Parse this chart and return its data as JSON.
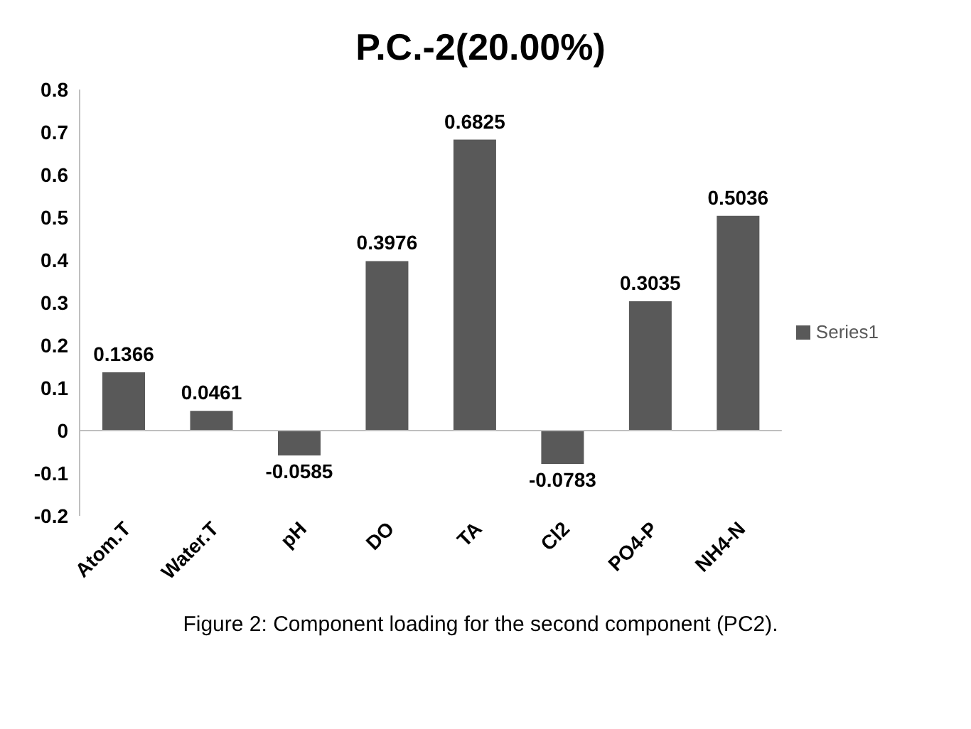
{
  "chart_data": {
    "type": "bar",
    "title": "P.C.-2(20.00%)",
    "categories": [
      "Atom.T",
      "Water.T",
      "pH",
      "DO",
      "TA",
      "Cl2",
      "PO4-P",
      "NH4-N"
    ],
    "series": [
      {
        "name": "Series1",
        "color": "#595959",
        "values": [
          0.1366,
          0.0461,
          -0.0585,
          0.3976,
          0.6825,
          -0.0783,
          0.3035,
          0.5036
        ]
      }
    ],
    "ylim": [
      -0.2,
      0.8
    ],
    "yticks": [
      -0.2,
      -0.1,
      0,
      0.1,
      0.2,
      0.3,
      0.4,
      0.5,
      0.6,
      0.7,
      0.8
    ],
    "data_labels": true,
    "legend": "right",
    "annotations": [
      "Figure 2: Component loading for the second component (PC2)."
    ]
  }
}
